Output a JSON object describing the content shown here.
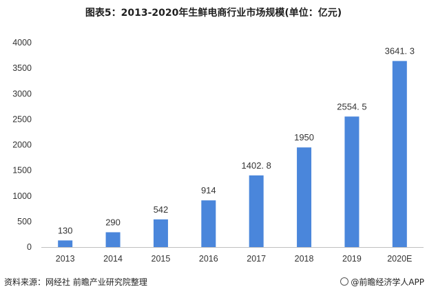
{
  "title": "图表5：2013-2020年生鲜电商行业市场规模(单位：亿元)",
  "footer": {
    "source": "资料来源：网经社 前瞻产业研究院整理",
    "brand": "@前瞻经济学人APP"
  },
  "colors": {
    "bar": "#4a86db",
    "axis": "#bfbfbf"
  },
  "chart_data": {
    "type": "bar",
    "title": "图表5：2013-2020年生鲜电商行业市场规模(单位：亿元)",
    "categories": [
      "2013",
      "2014",
      "2015",
      "2016",
      "2017",
      "2018",
      "2019",
      "2020E"
    ],
    "values": [
      130,
      290,
      542,
      914,
      1402.8,
      1950,
      2554.5,
      3641.3
    ],
    "value_labels": [
      "130",
      "290",
      "542",
      "914",
      "1402. 8",
      "1950",
      "2554. 5",
      "3641. 3"
    ],
    "ylim": [
      0,
      4000
    ],
    "yticks": [
      "0",
      "500",
      "1000",
      "1500",
      "2000",
      "2500",
      "3000",
      "3500",
      "4000"
    ],
    "xlabel": "",
    "ylabel": "",
    "grid": false,
    "legend": "none"
  }
}
